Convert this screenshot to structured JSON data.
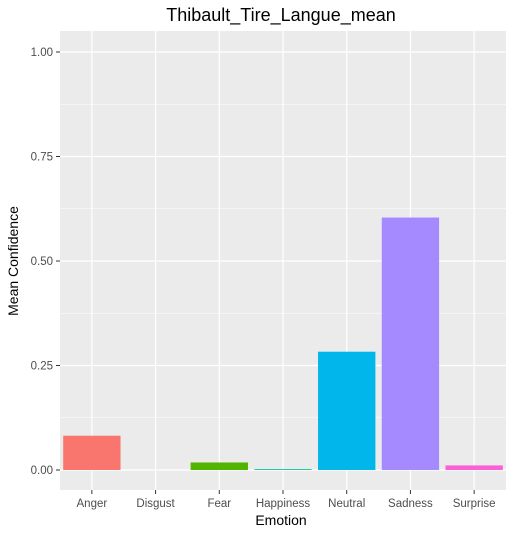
{
  "chart_data": {
    "type": "bar",
    "title": "Thibault_Tire_Langue_mean",
    "xlabel": "Emotion",
    "ylabel": "Mean Confidence",
    "categories": [
      "Anger",
      "Disgust",
      "Fear",
      "Happiness",
      "Neutral",
      "Sadness",
      "Surprise"
    ],
    "values": [
      0.082,
      0.0,
      0.018,
      0.002,
      0.283,
      0.604,
      0.011
    ],
    "colors": [
      "#F8766D",
      "#C49A00",
      "#53B400",
      "#00C094",
      "#00B6EB",
      "#A58AFF",
      "#FB61D7"
    ],
    "ylim": [
      0,
      1.0
    ],
    "yticks": [
      0.0,
      0.25,
      0.5,
      0.75,
      1.0
    ],
    "ytick_labels": [
      "0.00",
      "0.25",
      "0.50",
      "0.75",
      "1.00"
    ],
    "grid": true,
    "panel_background": "#EBEBEB",
    "grid_color": "#FFFFFF"
  }
}
